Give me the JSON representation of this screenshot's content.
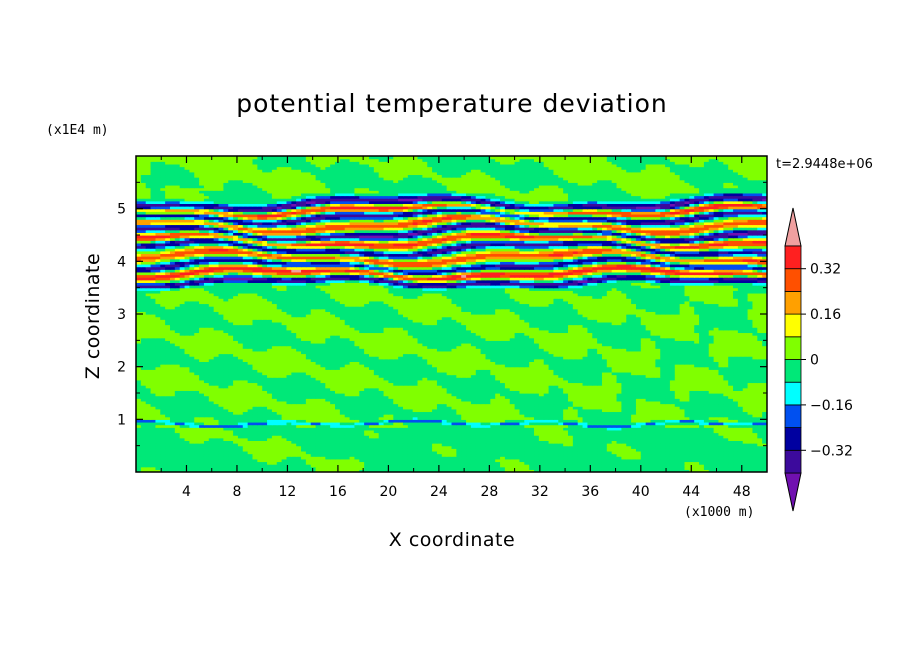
{
  "chart_data": {
    "type": "heatmap",
    "title": "potential temperature deviation",
    "xlabel": "X coordinate",
    "ylabel": "Z coordinate",
    "x_unit": "(x1000 m)",
    "y_unit": "(x1E4 m)",
    "time_label": "t=2.9448e+06",
    "xlim": [
      0,
      50
    ],
    "ylim": [
      0,
      6
    ],
    "x_ticks": [
      4,
      8,
      12,
      16,
      20,
      24,
      28,
      32,
      36,
      40,
      44,
      48
    ],
    "y_ticks": [
      1,
      2,
      3,
      4,
      5
    ],
    "colorbar": {
      "levels": [
        -0.4,
        -0.32,
        -0.24,
        -0.16,
        -0.08,
        0,
        0.08,
        0.16,
        0.24,
        0.32,
        0.4
      ],
      "labels": [
        "0.32",
        "0.16",
        "0",
        "-0.16",
        "-0.32"
      ],
      "label_values": [
        0.32,
        0.16,
        0,
        -0.16,
        -0.32
      ],
      "colors": [
        "#7010b0",
        "#3c0a9c",
        "#0000a0",
        "#0050f0",
        "#00ffff",
        "#00e878",
        "#80ff00",
        "#ffff00",
        "#ffa000",
        "#ff5000",
        "#ff2020",
        "#f0a0a0"
      ],
      "extend": "both"
    },
    "bands": [
      {
        "z": 5.1,
        "level": -0.4,
        "amp": 0.1,
        "w": 0.08
      },
      {
        "z": 4.98,
        "level": 0.36,
        "amp": 0.08,
        "w": 0.07
      },
      {
        "z": 4.86,
        "level": -0.36,
        "amp": 0.1,
        "w": 0.07
      },
      {
        "z": 4.7,
        "level": 0.3,
        "amp": 0.12,
        "w": 0.08
      },
      {
        "z": 4.55,
        "level": -0.4,
        "amp": 0.12,
        "w": 0.07
      },
      {
        "z": 4.4,
        "level": 0.34,
        "amp": 0.1,
        "w": 0.07
      },
      {
        "z": 4.25,
        "level": -0.36,
        "amp": 0.12,
        "w": 0.07
      },
      {
        "z": 4.08,
        "level": 0.3,
        "amp": 0.1,
        "w": 0.08
      },
      {
        "z": 3.92,
        "level": -0.32,
        "amp": 0.1,
        "w": 0.07
      },
      {
        "z": 3.78,
        "level": 0.38,
        "amp": 0.08,
        "w": 0.07
      },
      {
        "z": 3.62,
        "level": -0.38,
        "amp": 0.06,
        "w": 0.06
      },
      {
        "z": 0.93,
        "level": -0.2,
        "amp": 0.02,
        "w": 0.03
      }
    ]
  }
}
